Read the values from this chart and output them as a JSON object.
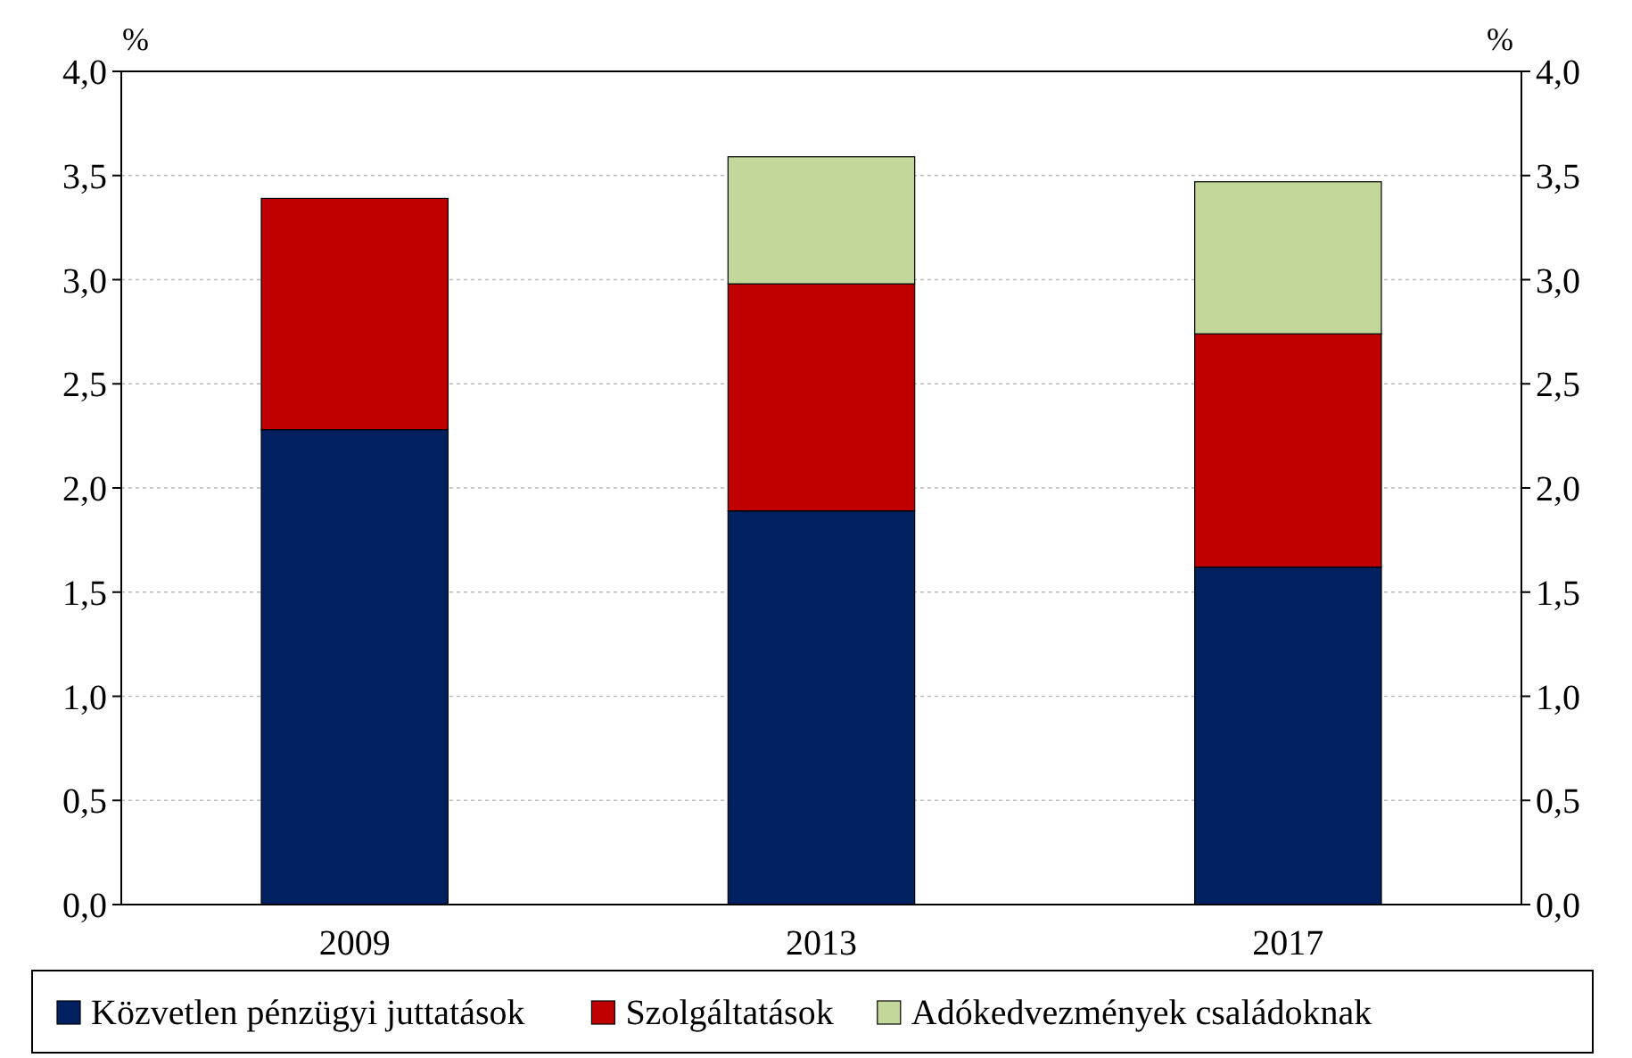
{
  "chart_data": {
    "type": "bar",
    "stacked": true,
    "ylabel": "%",
    "y2label": "%",
    "categories": [
      "2009",
      "2013",
      "2017"
    ],
    "series": [
      {
        "name": "Közvetlen pénzügyi juttatások",
        "color": "#002060",
        "values": [
          2.28,
          1.89,
          1.62
        ]
      },
      {
        "name": "Szolgáltatások",
        "color": "#c00000",
        "values": [
          1.11,
          1.09,
          1.12
        ]
      },
      {
        "name": "Adókedvezmények családoknak",
        "color": "#c4d79b",
        "values": [
          null,
          0.61,
          0.73
        ]
      }
    ],
    "ylim": [
      0,
      4
    ],
    "yticks": [
      {
        "value": 0,
        "label": "0,0"
      },
      {
        "value": 0.5,
        "label": "0,5"
      },
      {
        "value": 1,
        "label": "1,0"
      },
      {
        "value": 1.5,
        "label": "1,5"
      },
      {
        "value": 2,
        "label": "2,0"
      },
      {
        "value": 2.5,
        "label": "2,5"
      },
      {
        "value": 3,
        "label": "3,0"
      },
      {
        "value": 3.5,
        "label": "3,5"
      },
      {
        "value": 4,
        "label": "4,0"
      }
    ],
    "y2lim": [
      0,
      4
    ],
    "y2ticks": [
      {
        "value": 0,
        "label": "0,0"
      },
      {
        "value": 0.5,
        "label": "0,5"
      },
      {
        "value": 1,
        "label": "1,0"
      },
      {
        "value": 1.5,
        "label": "1,5"
      },
      {
        "value": 2,
        "label": "2,0"
      },
      {
        "value": 2.5,
        "label": "2,5"
      },
      {
        "value": 3,
        "label": "3,0"
      },
      {
        "value": 3.5,
        "label": "3,5"
      },
      {
        "value": 4,
        "label": "4,0"
      }
    ],
    "grid": "y",
    "legend": "bottom"
  }
}
